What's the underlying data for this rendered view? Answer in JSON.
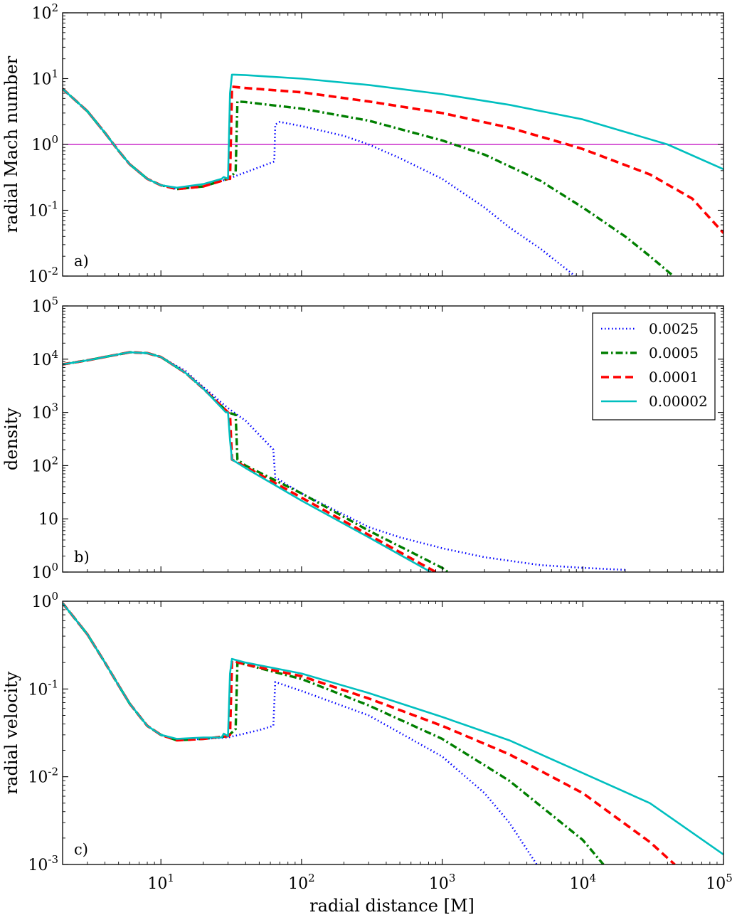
{
  "chart_data": {
    "type": "line",
    "xscale": "log",
    "xlim": [
      2,
      100000
    ],
    "xlabel": "radial distance [M]",
    "x_tick_labels": [
      {
        "value": 10,
        "base": "10",
        "exp": "1"
      },
      {
        "value": 100,
        "base": "10",
        "exp": "2"
      },
      {
        "value": 1000,
        "base": "10",
        "exp": "3"
      },
      {
        "value": 10000,
        "base": "10",
        "exp": "4"
      },
      {
        "value": 100000,
        "base": "10",
        "exp": "5"
      }
    ],
    "legend": {
      "location": "upper right of panel b",
      "entries": [
        {
          "key": "dotted",
          "label": "0.0025",
          "color": "#0000ff"
        },
        {
          "key": "dashdot",
          "label": "0.0005",
          "color": "#007f00"
        },
        {
          "key": "dashed",
          "label": "0.0001",
          "color": "#ff0000"
        },
        {
          "key": "solid",
          "label": "0.00002",
          "color": "#00bfbf"
        }
      ]
    },
    "panels": [
      {
        "id": "mach",
        "letter": "a)",
        "ylabel": "radial Mach number",
        "yscale": "log",
        "ylim": [
          0.01,
          100
        ],
        "y_tick_labels": [
          {
            "value": 100,
            "base": "10",
            "exp": "2"
          },
          {
            "value": 10,
            "base": "10",
            "exp": "1"
          },
          {
            "value": 1,
            "base": "10",
            "exp": "0"
          },
          {
            "value": 0.1,
            "base": "10",
            "exp": "-1"
          },
          {
            "value": 0.01,
            "base": "10",
            "exp": "-2"
          }
        ],
        "reference_line": {
          "y": 1,
          "color": "#bf00bf"
        },
        "series": [
          {
            "name": "0.0025",
            "style": "dotted",
            "x": [
              2,
              3,
              4,
              5,
              6,
              8,
              10,
              13,
              20,
              30,
              50,
              64,
              65,
              70,
              100,
              200,
              300,
              500,
              1000,
              2000,
              3000,
              5000,
              8800
            ],
            "y": [
              7,
              3.2,
              1.5,
              0.8,
              0.5,
              0.3,
              0.24,
              0.21,
              0.23,
              0.3,
              0.45,
              0.55,
              2.0,
              2.2,
              1.9,
              1.35,
              1.0,
              0.62,
              0.3,
              0.11,
              0.055,
              0.026,
              0.01
            ]
          },
          {
            "name": "0.0005",
            "style": "dashdot",
            "x": [
              2,
              3,
              4,
              5,
              6,
              8,
              10,
              13,
              20,
              30,
              34,
              35,
              40,
              100,
              300,
              1000,
              2000,
              5000,
              10000,
              20000,
              30000,
              44000
            ],
            "y": [
              7,
              3.2,
              1.5,
              0.8,
              0.5,
              0.3,
              0.24,
              0.21,
              0.23,
              0.3,
              0.38,
              4.5,
              4.4,
              3.5,
              2.3,
              1.15,
              0.7,
              0.28,
              0.11,
              0.04,
              0.02,
              0.01
            ]
          },
          {
            "name": "0.0001",
            "style": "dashed",
            "x": [
              2,
              3,
              4,
              5,
              6,
              8,
              10,
              13,
              20,
              30,
              31,
              32,
              33,
              40,
              100,
              300,
              1000,
              3000,
              7800,
              10000,
              30000,
              60000,
              100000
            ],
            "y": [
              7,
              3.2,
              1.5,
              0.8,
              0.5,
              0.3,
              0.24,
              0.21,
              0.23,
              0.3,
              0.3,
              7.5,
              7.5,
              7.2,
              6.2,
              4.5,
              3.0,
              1.8,
              1.0,
              0.85,
              0.35,
              0.15,
              0.045
            ]
          },
          {
            "name": "0.00002",
            "style": "solid",
            "x": [
              2,
              3,
              4,
              5,
              6,
              8,
              10,
              13,
              20,
              27,
              28,
              30,
              31,
              32,
              33,
              40,
              100,
              300,
              1000,
              3000,
              10000,
              40000,
              100000
            ],
            "y": [
              7,
              3.2,
              1.5,
              0.8,
              0.5,
              0.3,
              0.24,
              0.22,
              0.25,
              0.3,
              0.32,
              0.3,
              6.0,
              11.5,
              11.5,
              11.3,
              10,
              8,
              5.8,
              4.0,
              2.4,
              1.0,
              0.42
            ]
          }
        ]
      },
      {
        "id": "density",
        "letter": "b)",
        "ylabel": "density",
        "yscale": "log",
        "ylim": [
          1,
          100000
        ],
        "y_tick_labels": [
          {
            "value": 100000,
            "base": "10",
            "exp": "5"
          },
          {
            "value": 10000,
            "base": "10",
            "exp": "4"
          },
          {
            "value": 1000,
            "base": "10",
            "exp": "3"
          },
          {
            "value": 100,
            "base": "10",
            "exp": "2"
          },
          {
            "value": 10,
            "base": "10",
            "exp": ""
          },
          {
            "value": 1,
            "base": "10",
            "exp": "0"
          }
        ],
        "series": [
          {
            "name": "0.0025",
            "style": "dotted",
            "x": [
              2,
              3,
              4,
              6,
              8,
              10,
              15,
              20,
              30,
              40,
              63,
              65,
              100,
              200,
              300,
              500,
              1000,
              2000,
              5000,
              10000,
              20000
            ],
            "y": [
              8000,
              9500,
              11000,
              13500,
              13000,
              11000,
              6000,
              3000,
              1200,
              700,
              200,
              60,
              30,
              12,
              7,
              4.5,
              2.8,
              1.9,
              1.35,
              1.2,
              1.1
            ]
          },
          {
            "name": "0.0005",
            "style": "dashdot",
            "x": [
              2,
              3,
              4,
              6,
              8,
              10,
              15,
              20,
              30,
              34,
              35,
              40,
              100,
              300,
              1000,
              1100
            ],
            "y": [
              8000,
              9500,
              11000,
              13500,
              13000,
              11000,
              5500,
              2800,
              1000,
              900,
              130,
              100,
              30,
              6,
              1.2,
              1.0
            ]
          },
          {
            "name": "0.0001",
            "style": "dashed",
            "x": [
              2,
              3,
              4,
              6,
              8,
              10,
              15,
              20,
              30,
              31,
              32,
              40,
              100,
              300,
              900
            ],
            "y": [
              8000,
              9500,
              11000,
              13500,
              13000,
              11000,
              5500,
              2800,
              1000,
              900,
              130,
              95,
              25,
              5,
              1.0
            ]
          },
          {
            "name": "0.00002",
            "style": "solid",
            "x": [
              2,
              3,
              4,
              6,
              8,
              10,
              15,
              20,
              29,
              30,
              31,
              32,
              40,
              100,
              300,
              830
            ],
            "y": [
              8000,
              9500,
              11000,
              13500,
              13000,
              11000,
              5500,
              2800,
              1000,
              1000,
              300,
              130,
              90,
              22,
              4.5,
              1.0
            ]
          }
        ]
      },
      {
        "id": "velocity",
        "letter": "c)",
        "ylabel": "radial velocity",
        "yscale": "log",
        "ylim": [
          0.001,
          1
        ],
        "y_tick_labels": [
          {
            "value": 1,
            "base": "10",
            "exp": "0"
          },
          {
            "value": 0.1,
            "base": "10",
            "exp": "-1"
          },
          {
            "value": 0.01,
            "base": "10",
            "exp": "-2"
          },
          {
            "value": 0.001,
            "base": "10",
            "exp": "-3"
          }
        ],
        "series": [
          {
            "name": "0.0025",
            "style": "dotted",
            "x": [
              2,
              3,
              4,
              5,
              6,
              8,
              10,
              13,
              20,
              30,
              50,
              63,
              65,
              100,
              300,
              1000,
              2000,
              3000,
              4700
            ],
            "y": [
              0.95,
              0.42,
              0.2,
              0.11,
              0.068,
              0.038,
              0.03,
              0.026,
              0.027,
              0.028,
              0.034,
              0.038,
              0.12,
              0.095,
              0.05,
              0.017,
              0.0065,
              0.003,
              0.001
            ]
          },
          {
            "name": "0.0005",
            "style": "dashdot",
            "x": [
              2,
              3,
              4,
              5,
              6,
              8,
              10,
              13,
              20,
              30,
              34,
              35,
              40,
              100,
              300,
              1000,
              3000,
              10000,
              14000
            ],
            "y": [
              0.95,
              0.42,
              0.2,
              0.11,
              0.068,
              0.038,
              0.03,
              0.026,
              0.027,
              0.029,
              0.035,
              0.2,
              0.19,
              0.13,
              0.065,
              0.027,
              0.009,
              0.0019,
              0.001
            ]
          },
          {
            "name": "0.0001",
            "style": "dashed",
            "x": [
              2,
              3,
              4,
              5,
              6,
              8,
              10,
              13,
              20,
              30,
              31,
              32,
              40,
              100,
              300,
              1000,
              3000,
              10000,
              30000,
              45000
            ],
            "y": [
              0.95,
              0.42,
              0.2,
              0.11,
              0.068,
              0.038,
              0.03,
              0.026,
              0.027,
              0.029,
              0.03,
              0.21,
              0.19,
              0.14,
              0.078,
              0.038,
              0.018,
              0.0065,
              0.0018,
              0.001
            ]
          },
          {
            "name": "0.00002",
            "style": "solid",
            "x": [
              2,
              3,
              4,
              5,
              6,
              8,
              10,
              13,
              20,
              27,
              28,
              30,
              31,
              32,
              40,
              100,
              300,
              1000,
              3000,
              10000,
              30000,
              100000
            ],
            "y": [
              0.95,
              0.42,
              0.2,
              0.11,
              0.068,
              0.038,
              0.03,
              0.027,
              0.028,
              0.028,
              0.031,
              0.029,
              0.15,
              0.22,
              0.2,
              0.15,
              0.09,
              0.048,
              0.026,
              0.011,
              0.005,
              0.0013
            ]
          }
        ]
      }
    ]
  }
}
